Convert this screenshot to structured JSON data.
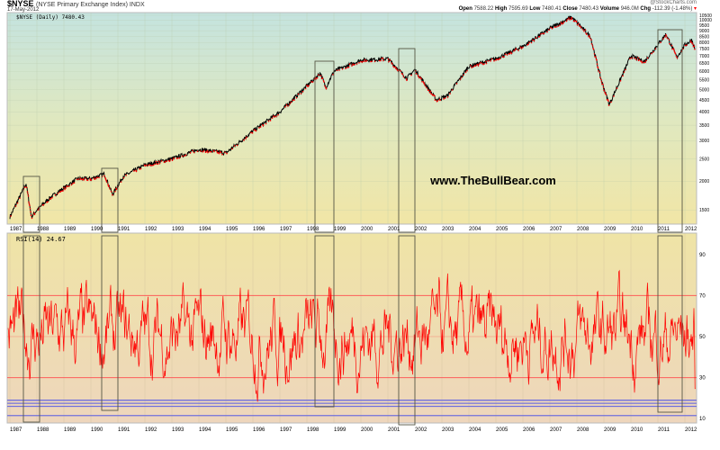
{
  "header": {
    "symbol": "$NYSE",
    "name": "(NYSE Primary Exchange Index) INDX",
    "date": "17-May-2012",
    "credit": "@StockCharts.com",
    "open_label": "Open",
    "open": "7588.22",
    "high_label": "High",
    "high": "7595.69",
    "low_label": "Low",
    "low": "7480.41",
    "close_label": "Close",
    "close": "7480.43",
    "volume_label": "Volume",
    "volume": "946.0M",
    "chg_label": "Chg",
    "chg": "-112.39 (-1.48%)"
  },
  "watermark": "www.TheBullBear.com",
  "colors": {
    "price_line": "#000000",
    "down_marks": "#ff0000",
    "rsi_line": "#ff0000",
    "support_lines": "#7070dd",
    "box": "#555544"
  },
  "chart_data": [
    {
      "type": "line",
      "legend": "$NYSE (Daily) 7480.43",
      "scale": "log",
      "ylim": [
        1300,
        10500
      ],
      "yticks": [
        1500,
        2000,
        2500,
        3000,
        3500,
        4000,
        4500,
        5000,
        5500,
        6000,
        6500,
        7000,
        7500,
        8000,
        8500,
        9000,
        9500,
        10000,
        10500
      ],
      "xticks": [
        "1987",
        "1988",
        "1989",
        "1990",
        "1991",
        "1992",
        "1993",
        "1994",
        "1995",
        "1996",
        "1997",
        "1998",
        "1999",
        "2000",
        "2001",
        "2002",
        "2003",
        "2004",
        "2005",
        "2006",
        "2007",
        "2008",
        "2009",
        "2010",
        "2011",
        "2012"
      ],
      "x": [
        1987.0,
        1987.6,
        1987.8,
        1988.0,
        1988.5,
        1989.5,
        1990.0,
        1990.5,
        1990.8,
        1991.2,
        1992.0,
        1993.0,
        1994.0,
        1995.0,
        1996.0,
        1997.0,
        1998.5,
        1998.7,
        1999.0,
        2000.0,
        2001.0,
        2001.7,
        2002.0,
        2002.8,
        2003.2,
        2004.0,
        2005.0,
        2006.0,
        2007.0,
        2007.8,
        2008.5,
        2008.9,
        2009.2,
        2010.0,
        2010.5,
        2011.3,
        2011.7,
        2012.0,
        2012.25,
        2012.38
      ],
      "y": [
        1400,
        1950,
        1400,
        1500,
        1700,
        2050,
        2050,
        2150,
        1750,
        2100,
        2350,
        2500,
        2750,
        2650,
        3300,
        4000,
        5900,
        5100,
        6000,
        6700,
        6800,
        5600,
        6100,
        4500,
        4700,
        6300,
        6800,
        7700,
        9200,
        10300,
        8500,
        5500,
        4300,
        7000,
        6600,
        8700,
        6900,
        7800,
        8200,
        7480
      ],
      "highlight_boxes": [
        [
          "1987.5",
          "1988.1"
        ],
        [
          "1990.4",
          "1991.0"
        ],
        [
          "1998.3",
          "1999.0"
        ],
        [
          "2001.4",
          "2002.0"
        ],
        [
          "2011.0",
          "2011.9"
        ]
      ]
    },
    {
      "type": "line",
      "legend": "RSI(14) 24.67",
      "ylim": [
        8,
        98
      ],
      "yticks": [
        10,
        30,
        50,
        70,
        90
      ],
      "reference_lines": [
        30,
        50,
        70
      ],
      "support_lines": [
        19,
        17.5,
        16,
        11.5
      ],
      "xticks": [
        "1987",
        "1988",
        "1989",
        "1990",
        "1991",
        "1992",
        "1993",
        "1994",
        "1995",
        "1996",
        "1997",
        "1998",
        "1999",
        "2000",
        "2001",
        "2002",
        "2003",
        "2004",
        "2005",
        "2006",
        "2007",
        "2008",
        "2009",
        "2010",
        "2011",
        "2012"
      ]
    }
  ]
}
